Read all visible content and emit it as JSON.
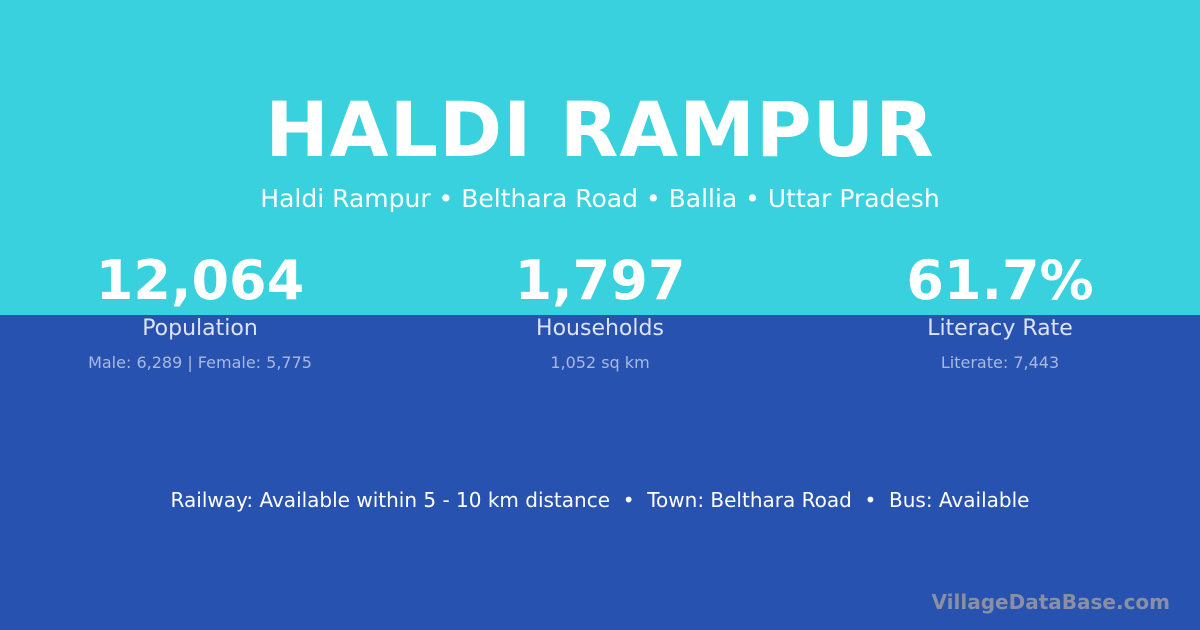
{
  "header": {
    "title": "HALDI RAMPUR",
    "subtitle": "Haldi Rampur • Belthara Road • Ballia • Uttar Pradesh"
  },
  "stats": [
    {
      "value": "12,064",
      "label": "Population",
      "detail": "Male: 6,289 | Female: 5,775"
    },
    {
      "value": "1,797",
      "label": "Households",
      "detail": "1,052 sq km"
    },
    {
      "value": "61.7%",
      "label": "Literacy Rate",
      "detail": "Literate: 7,443"
    }
  ],
  "info_line": "Railway: Available within 5 - 10 km distance  •  Town: Belthara Road  •  Bus: Available",
  "brand": "VillageDataBase.com",
  "colors": {
    "top_bg": "#38d1dd",
    "bottom_bg": "#2752b0"
  }
}
